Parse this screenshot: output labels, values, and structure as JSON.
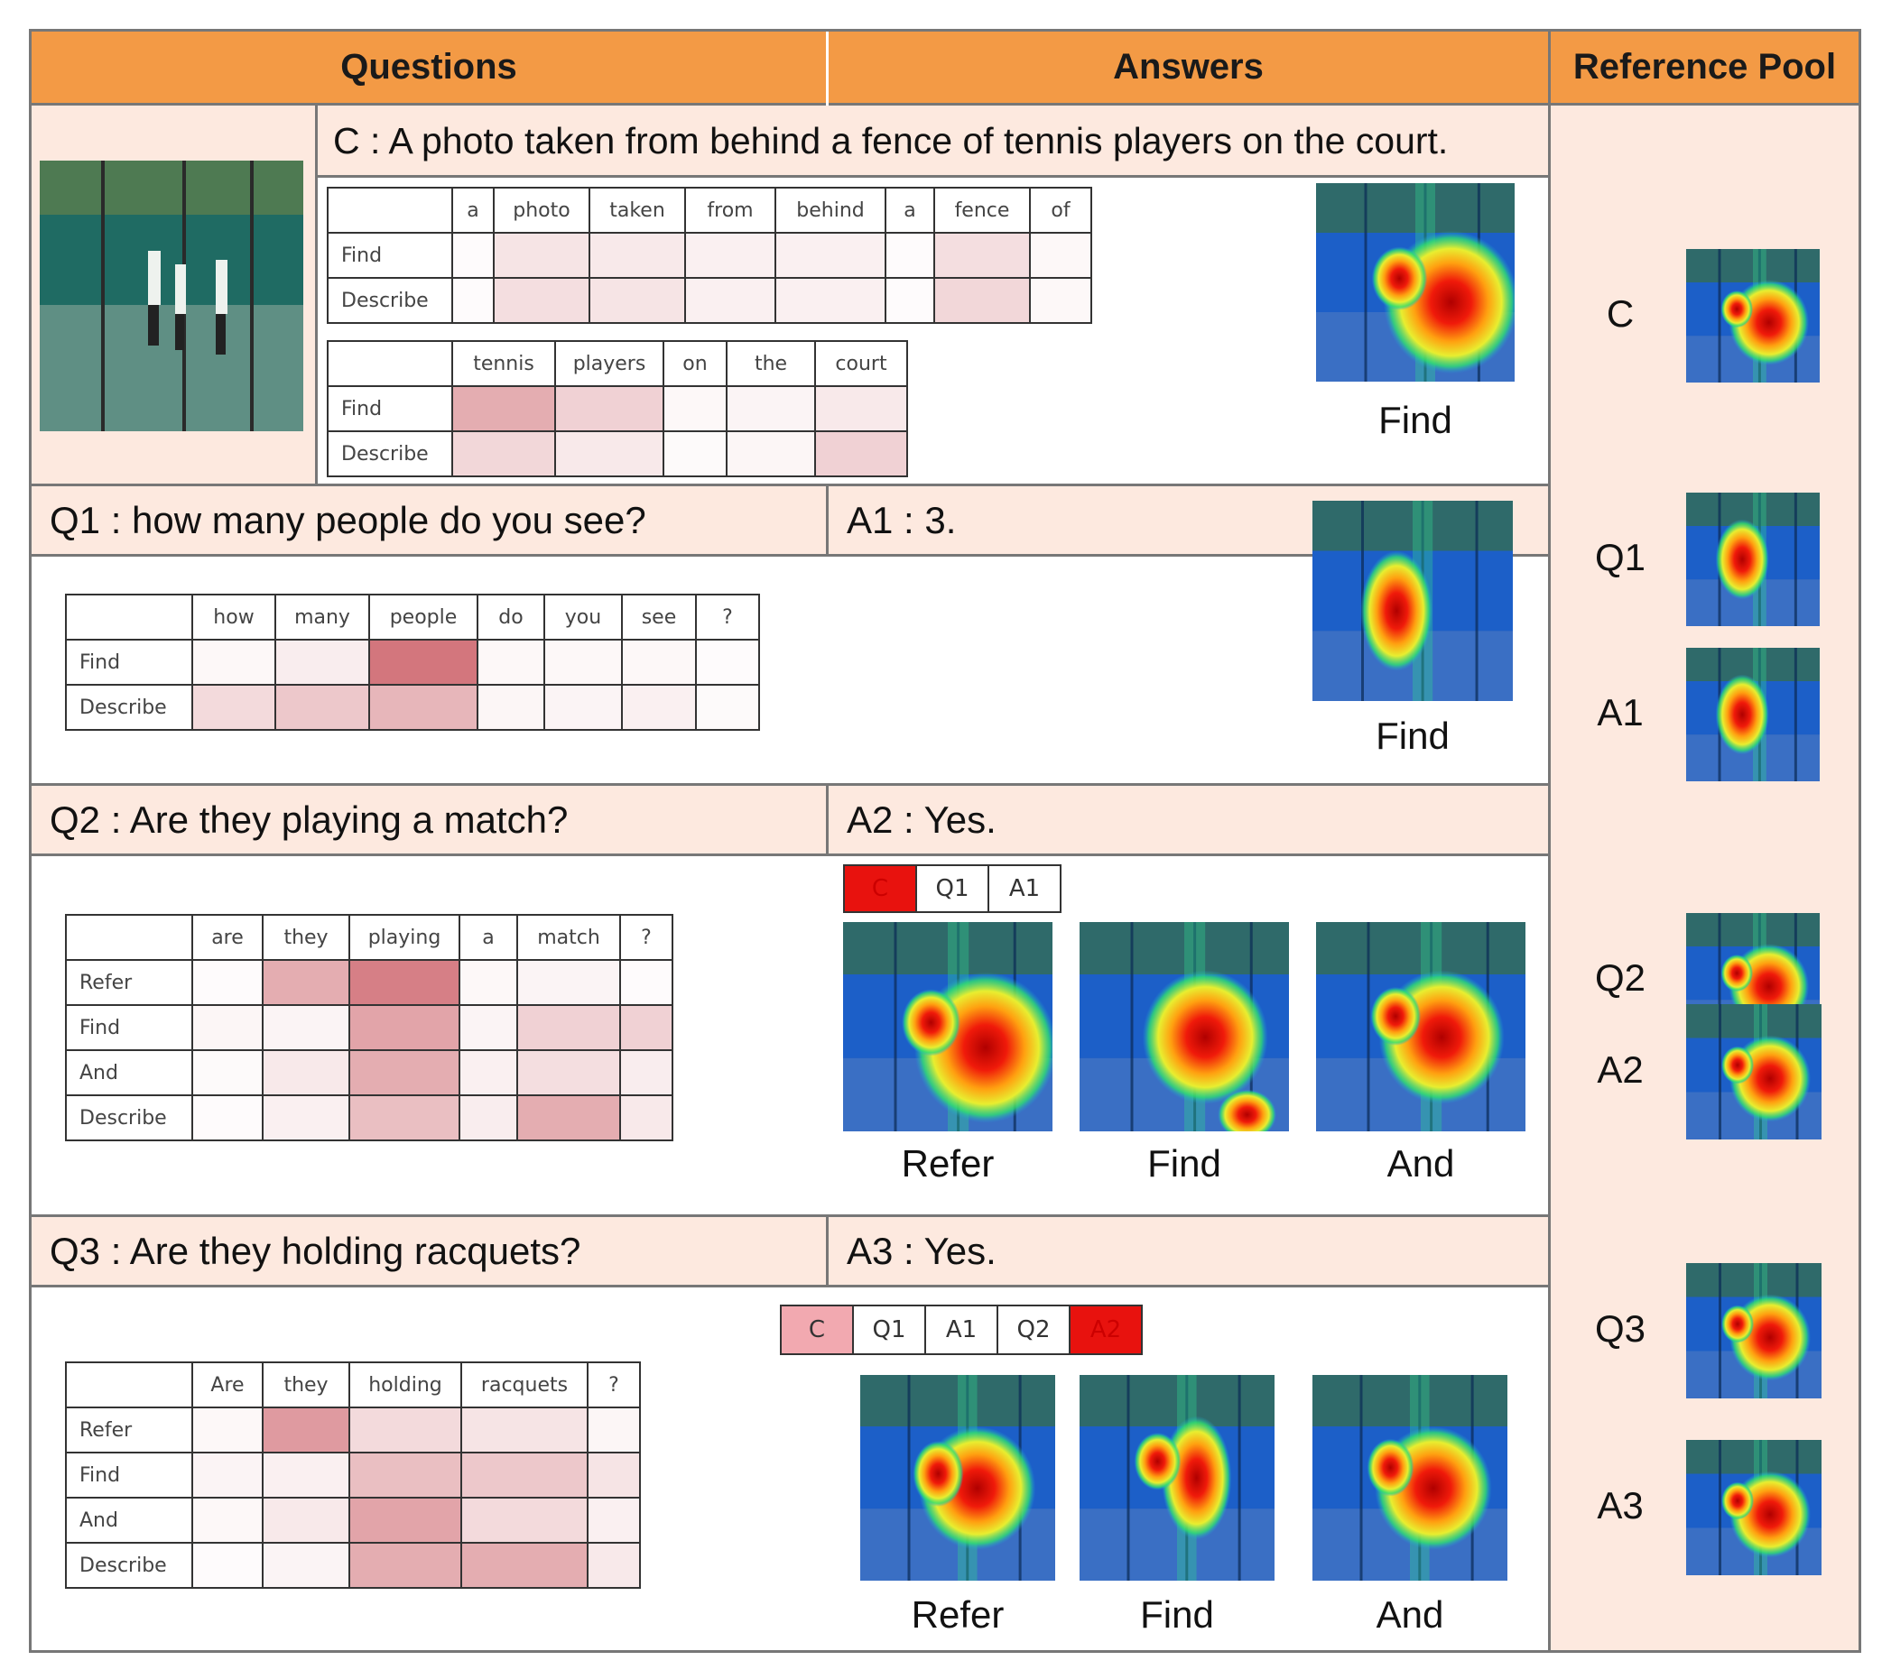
{
  "header": {
    "questions": "Questions",
    "answers": "Answers",
    "pool": "Reference Pool"
  },
  "caption": {
    "text": "C : A photo taken from behind a fence of tennis players on the court.",
    "table1": {
      "cols": [
        "a",
        "photo",
        "taken",
        "from",
        "behind",
        "a",
        "fence",
        "of"
      ],
      "rows": [
        {
          "label": "Find",
          "w": [
            0.02,
            0.15,
            0.12,
            0.08,
            0.08,
            0.02,
            0.18,
            0.04
          ]
        },
        {
          "label": "Describe",
          "w": [
            0.02,
            0.18,
            0.15,
            0.08,
            0.08,
            0.02,
            0.22,
            0.04
          ]
        }
      ]
    },
    "table2": {
      "cols": [
        "tennis",
        "players",
        "on",
        "the",
        "court"
      ],
      "rows": [
        {
          "label": "Find",
          "w": [
            0.45,
            0.25,
            0.04,
            0.06,
            0.12
          ]
        },
        {
          "label": "Describe",
          "w": [
            0.22,
            0.12,
            0.03,
            0.05,
            0.25
          ]
        }
      ]
    },
    "module": "Find"
  },
  "q1": {
    "text": "Q1 : how many people do you see?",
    "answer": "A1 : 3.",
    "table": {
      "cols": [
        "how",
        "many",
        "people",
        "do",
        "you",
        "see",
        "?"
      ],
      "rows": [
        {
          "label": "Find",
          "w": [
            0.04,
            0.1,
            0.75,
            0.04,
            0.04,
            0.04,
            0.02
          ]
        },
        {
          "label": "Describe",
          "w": [
            0.2,
            0.3,
            0.4,
            0.05,
            0.06,
            0.08,
            0.03
          ]
        }
      ]
    },
    "module": "Find"
  },
  "q2": {
    "text": "Q2  : Are they playing a match?",
    "answer": "A2 : Yes.",
    "table": {
      "cols": [
        "are",
        "they",
        "playing",
        "a",
        "match",
        "?"
      ],
      "rows": [
        {
          "label": "Refer",
          "w": [
            0.02,
            0.45,
            0.7,
            0.04,
            0.06,
            0.02
          ]
        },
        {
          "label": "Find",
          "w": [
            0.05,
            0.06,
            0.5,
            0.06,
            0.25,
            0.25
          ]
        },
        {
          "label": "And",
          "w": [
            0.03,
            0.12,
            0.45,
            0.08,
            0.18,
            0.1
          ]
        },
        {
          "label": "Describe",
          "w": [
            0.02,
            0.08,
            0.35,
            0.1,
            0.45,
            0.12
          ]
        }
      ]
    },
    "selector": [
      {
        "label": "C",
        "color": "#e8120e"
      },
      {
        "label": "Q1",
        "color": "#ffffff"
      },
      {
        "label": "A1",
        "color": "#ffffff"
      }
    ],
    "modules": [
      "Refer",
      "Find",
      "And"
    ]
  },
  "q3": {
    "text": "Q3  : Are they holding racquets?",
    "answer": "A3 : Yes.",
    "table": {
      "cols": [
        "Are",
        "they",
        "holding",
        "racquets",
        "?"
      ],
      "rows": [
        {
          "label": "Refer",
          "w": [
            0.04,
            0.55,
            0.2,
            0.15,
            0.05
          ]
        },
        {
          "label": "Find",
          "w": [
            0.06,
            0.08,
            0.35,
            0.3,
            0.15
          ]
        },
        {
          "label": "And",
          "w": [
            0.04,
            0.12,
            0.5,
            0.2,
            0.08
          ]
        },
        {
          "label": "Describe",
          "w": [
            0.02,
            0.06,
            0.45,
            0.45,
            0.12
          ]
        }
      ]
    },
    "selector": [
      {
        "label": "C",
        "color": "#f2a9b0"
      },
      {
        "label": "Q1",
        "color": "#ffffff"
      },
      {
        "label": "A1",
        "color": "#ffffff"
      },
      {
        "label": "Q2",
        "color": "#ffffff"
      },
      {
        "label": "A2",
        "color": "#e8120e"
      }
    ],
    "modules": [
      "Refer",
      "Find",
      "And"
    ]
  },
  "pool": [
    "C",
    "Q1",
    "A1",
    "Q2",
    "A2",
    "Q3",
    "A3"
  ]
}
